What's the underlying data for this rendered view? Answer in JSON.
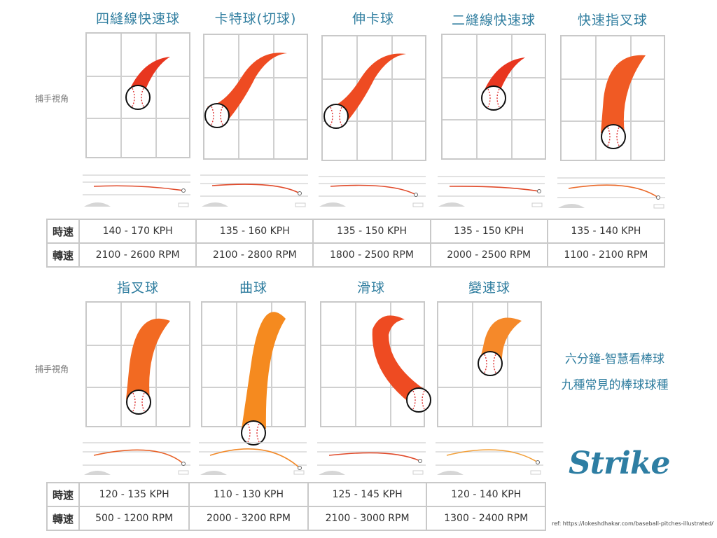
{
  "catcher_view_label": "捕手視角",
  "row1": {
    "pitches": [
      {
        "name": "四縫線快速球",
        "speed": "140 - 170 KPH",
        "spin": "2100 - 2600 RPM",
        "color": "#e8361f"
      },
      {
        "name": "卡特球(切球)",
        "speed": "135 - 160 KPH",
        "spin": "2100 - 2800 RPM",
        "color": "#ee4b22"
      },
      {
        "name": "伸卡球",
        "speed": "135 - 150 KPH",
        "spin": "1800 - 2500 RPM",
        "color": "#ee4b22"
      },
      {
        "name": "二縫線快速球",
        "speed": "135 - 150 KPH",
        "spin": "2000 - 2500 RPM",
        "color": "#e8361f"
      },
      {
        "name": "快速指叉球",
        "speed": "135 - 140 KPH",
        "spin": "1100 - 2100 RPM",
        "color": "#f05a24"
      }
    ]
  },
  "row2": {
    "pitches": [
      {
        "name": "指叉球",
        "speed": "120 - 135 KPH",
        "spin": "500 - 1200 RPM",
        "color": "#f26a22"
      },
      {
        "name": "曲球",
        "speed": "110 - 130 KPH",
        "spin": "2000 - 3200 RPM",
        "color": "#f58a1f"
      },
      {
        "name": "滑球",
        "speed": "125 - 145 KPH",
        "spin": "2100 - 3000 RPM",
        "color": "#ee4b22"
      },
      {
        "name": "變速球",
        "speed": "120 - 140 KPH",
        "spin": "1300 - 2400 RPM",
        "color": "#f5892a"
      }
    ]
  },
  "table_labels": {
    "speed": "時速",
    "spin": "轉速"
  },
  "caption": {
    "line1": "六分鐘-智慧看棒球",
    "line2": "九種常見的棒球球種"
  },
  "logo_text": "Strike",
  "reference": "ref: https://lokeshdhakar.com/baseball-pitches-illustrated/"
}
